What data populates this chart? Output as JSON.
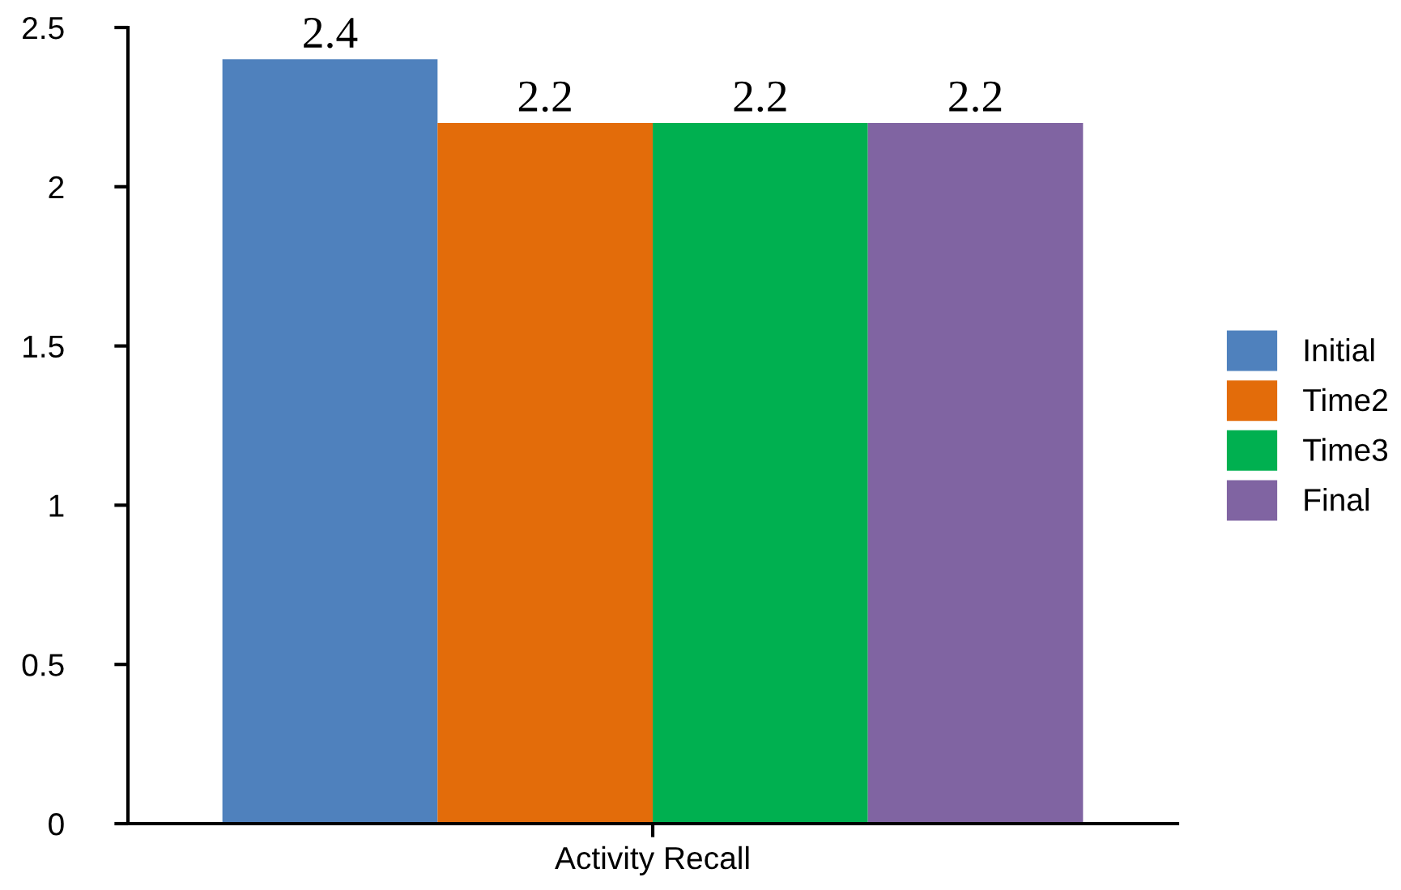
{
  "chart_data": {
    "type": "bar",
    "categories": [
      "Activity Recall"
    ],
    "series": [
      {
        "name": "Initial",
        "color": "#4f81bd",
        "values": [
          2.4
        ]
      },
      {
        "name": "Time2",
        "color": "#e36c0a",
        "values": [
          2.2
        ]
      },
      {
        "name": "Time3",
        "color": "#00b050",
        "values": [
          2.2
        ]
      },
      {
        "name": "Final",
        "color": "#8064a2",
        "values": [
          2.2
        ]
      }
    ],
    "ylim": [
      0,
      2.5
    ],
    "yticks": [
      0,
      0.5,
      1,
      1.5,
      2,
      2.5
    ],
    "data_labels": true,
    "legend": "right"
  }
}
